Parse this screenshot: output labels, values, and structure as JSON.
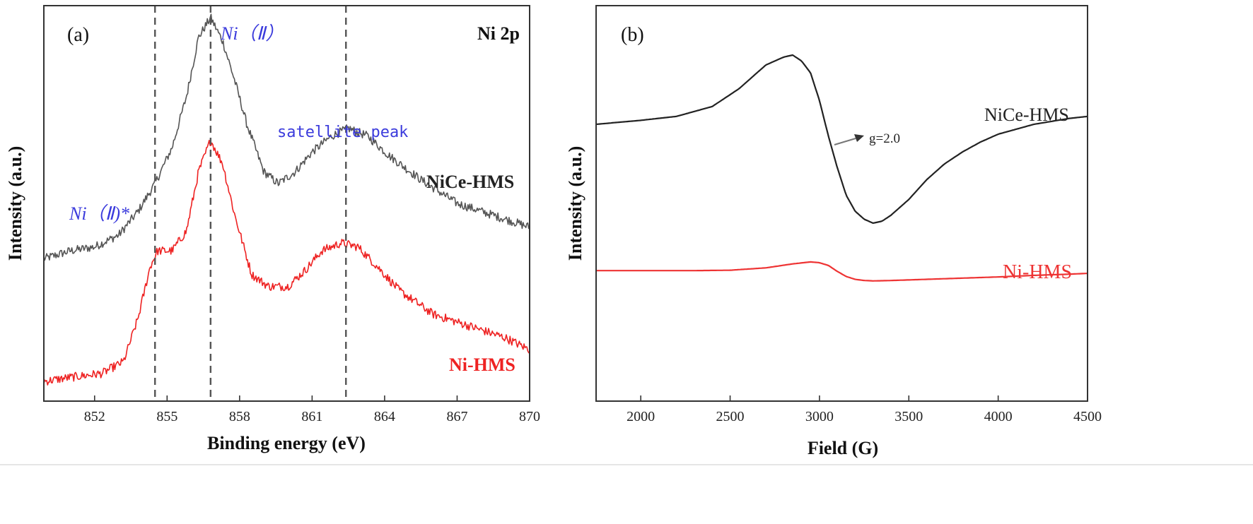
{
  "chart_data": [
    {
      "type": "line",
      "panel_label": "(a)",
      "title": "Ni 2p",
      "xlabel": "Binding energy (eV)",
      "ylabel": "Intensity (a.u.)",
      "xlim": [
        849.9,
        870
      ],
      "ylim": [
        0,
        1
      ],
      "x_ticks": [
        852,
        855,
        858,
        861,
        864,
        867,
        870
      ],
      "reference_lines": [
        854.5,
        856.8,
        862.4
      ],
      "annotations": {
        "ni2": "Ni（Ⅱ）",
        "ni2_star": "Ni（Ⅱ)*",
        "satellite": "satellite peak"
      },
      "series": [
        {
          "name": "NiCe-HMS",
          "color": "#555555",
          "x": [
            849.9,
            851,
            852,
            853,
            853.8,
            854.5,
            855.2,
            855.8,
            856.3,
            856.8,
            857.3,
            857.8,
            858.3,
            859,
            859.6,
            860.3,
            861,
            861.8,
            862.5,
            863.3,
            864.2,
            865.5,
            867,
            868.5,
            870
          ],
          "values": [
            0.36,
            0.38,
            0.39,
            0.42,
            0.48,
            0.55,
            0.64,
            0.77,
            0.92,
            0.97,
            0.91,
            0.81,
            0.7,
            0.58,
            0.55,
            0.58,
            0.63,
            0.67,
            0.69,
            0.67,
            0.62,
            0.56,
            0.5,
            0.47,
            0.44
          ]
        },
        {
          "name": "Ni-HMS",
          "color": "#ee2222",
          "x": [
            849.9,
            851,
            852.3,
            853.2,
            853.8,
            854.3,
            854.6,
            855.2,
            855.8,
            856.3,
            856.8,
            857.3,
            857.8,
            858.5,
            859.2,
            860,
            860.7,
            861.4,
            862.2,
            862.9,
            863.7,
            864.6,
            866,
            867.5,
            869,
            870
          ],
          "values": [
            0.05,
            0.06,
            0.07,
            0.1,
            0.21,
            0.34,
            0.38,
            0.38,
            0.43,
            0.58,
            0.66,
            0.6,
            0.47,
            0.32,
            0.29,
            0.29,
            0.33,
            0.38,
            0.4,
            0.39,
            0.34,
            0.28,
            0.22,
            0.19,
            0.16,
            0.13
          ]
        }
      ]
    },
    {
      "type": "line",
      "panel_label": "(b)",
      "xlabel": "Field (G)",
      "ylabel": "Intensity (a.u.)",
      "xlim": [
        1750,
        4500
      ],
      "ylim": [
        0,
        1
      ],
      "x_ticks": [
        2000,
        2500,
        3000,
        3500,
        4000,
        4500
      ],
      "annotations": {
        "g_value": "g=2.0"
      },
      "series": [
        {
          "name": "NiCe-HMS",
          "color": "#222222",
          "x": [
            1750,
            2000,
            2200,
            2400,
            2550,
            2700,
            2800,
            2850,
            2900,
            2950,
            3000,
            3050,
            3100,
            3150,
            3200,
            3250,
            3300,
            3350,
            3400,
            3500,
            3600,
            3700,
            3800,
            3900,
            4000,
            4200,
            4400,
            4500
          ],
          "values": [
            0.7,
            0.71,
            0.72,
            0.745,
            0.79,
            0.85,
            0.87,
            0.875,
            0.86,
            0.83,
            0.76,
            0.67,
            0.59,
            0.52,
            0.48,
            0.46,
            0.45,
            0.455,
            0.47,
            0.51,
            0.56,
            0.6,
            0.63,
            0.655,
            0.675,
            0.7,
            0.715,
            0.72
          ]
        },
        {
          "name": "Ni-HMS",
          "color": "#ee3333",
          "x": [
            1750,
            2000,
            2300,
            2500,
            2700,
            2850,
            2950,
            3000,
            3050,
            3100,
            3150,
            3200,
            3250,
            3300,
            3400,
            3600,
            3800,
            4000,
            4200,
            4400,
            4500
          ],
          "values": [
            0.33,
            0.33,
            0.33,
            0.331,
            0.337,
            0.347,
            0.352,
            0.35,
            0.343,
            0.328,
            0.315,
            0.308,
            0.305,
            0.304,
            0.305,
            0.308,
            0.311,
            0.314,
            0.318,
            0.321,
            0.323
          ]
        }
      ]
    }
  ]
}
